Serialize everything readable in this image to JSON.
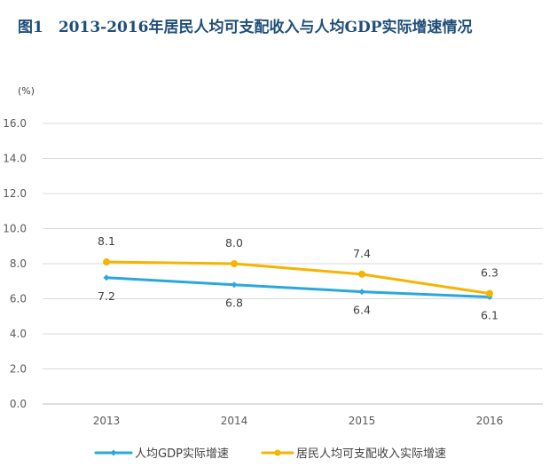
{
  "chart_data": {
    "type": "line",
    "title": "图1　2013-2016年居民人均可支配收入与人均GDP实际增速情况",
    "unit": "(%)",
    "xlabel": "",
    "ylabel": "",
    "categories": [
      "2013",
      "2014",
      "2015",
      "2016"
    ],
    "ylim": [
      0,
      16
    ],
    "yticks": [
      "0.0",
      "2.0",
      "4.0",
      "6.0",
      "8.0",
      "10.0",
      "12.0",
      "14.0",
      "16.0"
    ],
    "grid": true,
    "legend_position": "bottom",
    "series": [
      {
        "name": "人均GDP实际增速",
        "values": [
          7.2,
          6.8,
          6.4,
          6.1
        ],
        "labels": [
          "7.2",
          "6.8",
          "6.4",
          "6.1"
        ],
        "label_side": "below",
        "marker": "diamond",
        "color": "#2aa7df"
      },
      {
        "name": "居民人均可支配收入实际增速",
        "values": [
          8.1,
          8.0,
          7.4,
          6.3
        ],
        "labels": [
          "8.1",
          "8.0",
          "7.4",
          "6.3"
        ],
        "label_side": "above",
        "marker": "circle",
        "color": "#f5b400"
      }
    ]
  }
}
